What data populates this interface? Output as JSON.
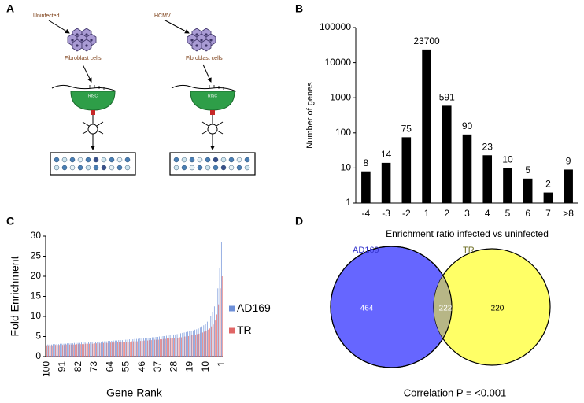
{
  "panel_labels": [
    "A",
    "B",
    "C",
    "D"
  ],
  "diagram": {
    "left": {
      "label": "Uninfected",
      "cells": "Fibroblast cells",
      "complex": "RISC"
    },
    "right": {
      "label": "HCMV",
      "cells": "Fibroblast cells",
      "complex": "RISC"
    }
  },
  "chart_data": [
    {
      "type": "bar",
      "log": true,
      "ylabel": "Number of genes",
      "xlabel": "Enrichment ratio infected vs uninfected",
      "categories": [
        "-4",
        "-3",
        "-2",
        "1",
        "2",
        "3",
        "4",
        "5",
        "6",
        "7",
        ">8"
      ],
      "values": [
        8,
        14,
        75,
        23700,
        591,
        90,
        23,
        10,
        5,
        2,
        9
      ],
      "color": "#000000",
      "data_labels": true,
      "ylim": [
        1,
        100000
      ],
      "yticks": [
        1,
        10,
        100,
        1000,
        10000,
        100000
      ]
    },
    {
      "type": "bar",
      "ylabel": "Fold Enrichment",
      "xlabel": "Gene Rank",
      "legend": "right",
      "categories": [
        "100",
        null,
        null,
        null,
        null,
        null,
        null,
        null,
        null,
        "91",
        null,
        null,
        null,
        null,
        null,
        null,
        null,
        null,
        "82",
        null,
        null,
        null,
        null,
        null,
        null,
        null,
        null,
        "73",
        null,
        null,
        null,
        null,
        null,
        null,
        null,
        null,
        "64",
        null,
        null,
        null,
        null,
        null,
        null,
        null,
        null,
        "55",
        null,
        null,
        null,
        null,
        null,
        null,
        null,
        null,
        "46",
        null,
        null,
        null,
        null,
        null,
        null,
        null,
        null,
        "37",
        null,
        null,
        null,
        null,
        null,
        null,
        null,
        null,
        "28",
        null,
        null,
        null,
        null,
        null,
        null,
        null,
        null,
        "19",
        null,
        null,
        null,
        null,
        null,
        null,
        null,
        null,
        "10",
        null,
        null,
        null,
        null,
        null,
        null,
        null,
        null,
        "1"
      ],
      "series": [
        {
          "name": "AD169",
          "color": "#6d8fd8",
          "values": [
            3.0,
            3.0,
            3.0,
            3.0,
            3.1,
            3.1,
            3.1,
            3.1,
            3.2,
            3.2,
            3.2,
            3.2,
            3.3,
            3.3,
            3.3,
            3.3,
            3.4,
            3.4,
            3.4,
            3.4,
            3.5,
            3.5,
            3.5,
            3.5,
            3.6,
            3.6,
            3.6,
            3.6,
            3.7,
            3.7,
            3.7,
            3.7,
            3.8,
            3.8,
            3.8,
            3.9,
            3.9,
            3.9,
            4.0,
            4.0,
            4.0,
            4.1,
            4.1,
            4.1,
            4.2,
            4.2,
            4.2,
            4.3,
            4.3,
            4.3,
            4.4,
            4.4,
            4.4,
            4.5,
            4.5,
            4.5,
            4.6,
            4.6,
            4.7,
            4.7,
            4.8,
            4.8,
            4.9,
            4.9,
            5.0,
            5.0,
            5.1,
            5.1,
            5.2,
            5.3,
            5.3,
            5.4,
            5.5,
            5.5,
            5.6,
            5.7,
            5.8,
            5.9,
            6.0,
            6.1,
            6.2,
            6.3,
            6.4,
            6.5,
            6.7,
            6.8,
            7.0,
            7.2,
            7.5,
            7.8,
            8.2,
            8.7,
            9.3,
            10.0,
            11.0,
            12.5,
            14.0,
            17.0,
            22.0,
            28.5
          ]
        },
        {
          "name": "TR",
          "color": "#e06666",
          "values": [
            2.8,
            2.8,
            2.8,
            2.8,
            2.8,
            2.9,
            2.9,
            2.9,
            2.9,
            2.9,
            2.9,
            3.0,
            3.0,
            3.0,
            3.0,
            3.0,
            3.0,
            3.1,
            3.1,
            3.1,
            3.1,
            3.1,
            3.2,
            3.2,
            3.2,
            3.2,
            3.2,
            3.3,
            3.3,
            3.3,
            3.3,
            3.3,
            3.4,
            3.4,
            3.4,
            3.4,
            3.5,
            3.5,
            3.5,
            3.5,
            3.6,
            3.6,
            3.6,
            3.6,
            3.7,
            3.7,
            3.7,
            3.7,
            3.8,
            3.8,
            3.8,
            3.8,
            3.9,
            3.9,
            3.9,
            4.0,
            4.0,
            4.0,
            4.1,
            4.1,
            4.1,
            4.2,
            4.2,
            4.2,
            4.3,
            4.3,
            4.4,
            4.4,
            4.5,
            4.5,
            4.5,
            4.6,
            4.6,
            4.7,
            4.7,
            4.8,
            4.8,
            4.9,
            5.0,
            5.0,
            5.1,
            5.2,
            5.3,
            5.4,
            5.5,
            5.6,
            5.7,
            5.9,
            6.0,
            6.2,
            6.4,
            6.7,
            7.0,
            7.5,
            8.0,
            9.0,
            10.5,
            13.0,
            17.0,
            20.0
          ]
        }
      ],
      "ylim": [
        0,
        30
      ],
      "yticks": [
        0,
        5,
        10,
        15,
        20,
        25,
        30
      ]
    }
  ],
  "venn": {
    "left_label": "AD169",
    "right_label": "TR",
    "left_only": "464",
    "overlap": "222",
    "right_only": "220",
    "caption": "Correlation P = <0.001"
  }
}
